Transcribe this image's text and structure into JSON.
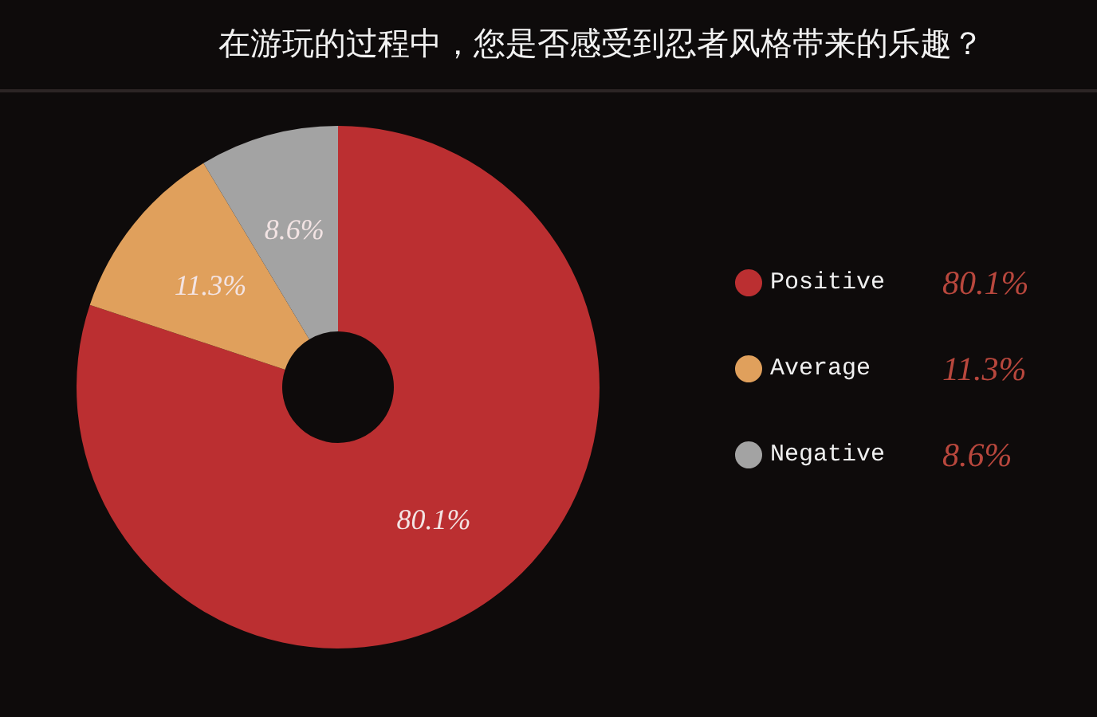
{
  "chart_data": {
    "type": "donut",
    "title": "在游玩的过程中，您是否感受到忍者风格带来的乐趣？",
    "categories": [
      "Positive",
      "Average",
      "Negative"
    ],
    "values": [
      80.1,
      11.3,
      8.6
    ],
    "colors": [
      "#bb2f31",
      "#e0a05c",
      "#a3a3a3"
    ],
    "value_labels": [
      "80.1%",
      "11.3%",
      "8.6%"
    ],
    "legend": "right"
  }
}
